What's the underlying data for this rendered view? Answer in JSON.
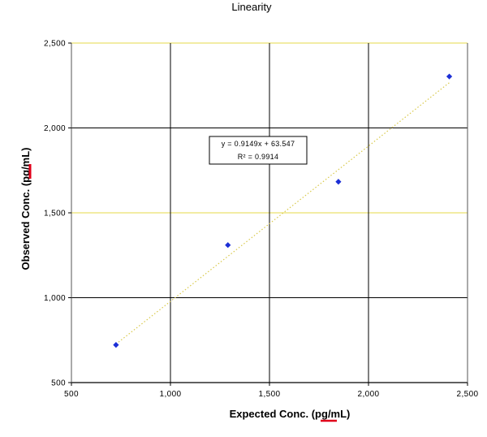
{
  "chart_data": {
    "type": "scatter",
    "title": "Linearity",
    "xlabel": "Expected Conc. (pg/mL)",
    "ylabel": "Observed Conc. (pg/mL)",
    "xlim": [
      500,
      2500
    ],
    "ylim": [
      500,
      2500
    ],
    "x_ticks": [
      500,
      1000,
      1500,
      2000,
      2500
    ],
    "y_ticks": [
      500,
      1000,
      1500,
      2000,
      2500
    ],
    "x_tick_labels": [
      "500",
      "1,000",
      "1,500",
      "2,000",
      "2,500"
    ],
    "y_tick_labels": [
      "500",
      "1,000",
      "1,500",
      "2,000",
      "2,500"
    ],
    "grid": true,
    "legend": "none",
    "series": [
      {
        "color": "#1c2fd6",
        "marker": "diamond",
        "x": [
          725,
          1290,
          1848,
          2408
        ],
        "y": [
          722,
          1310,
          1683,
          2303
        ]
      }
    ],
    "trendline": {
      "slope": 0.9149,
      "intercept": 63.547,
      "color": "#d9c94a",
      "style": "dotted",
      "x_range": [
        725,
        2408
      ]
    },
    "annotations": {
      "equation": "y = 0.9149x + 63.547",
      "r2_label": "R² = 0.9914"
    },
    "colors": {
      "grid_major": "#000000",
      "grid_minor": "#e6d84a",
      "marker": "#1c2fd6",
      "underline_flag": "#e0001a"
    }
  }
}
